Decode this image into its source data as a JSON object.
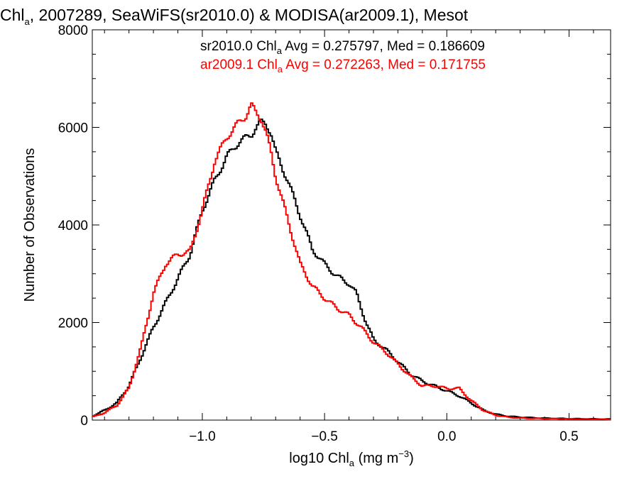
{
  "chart_data": {
    "type": "line",
    "step": true,
    "title": {
      "pre": "Chl",
      "sub": "a",
      "post": ", 2007289, SeaWiFS(sr2010.0) & MODISA(ar2009.1), Mesot"
    },
    "xlabel": {
      "pre": "log10 Chl",
      "sub": "a",
      "mid": " (mg m",
      "sup": "−3",
      "post": ")"
    },
    "ylabel": "Number of Observations",
    "xlim": [
      -1.45,
      0.67
    ],
    "ylim": [
      0,
      8000
    ],
    "x_ticks": [
      -1.0,
      -0.5,
      0.0,
      0.5
    ],
    "x_tick_labels": [
      "−1.0",
      "−0.5",
      "0.0",
      "0.5"
    ],
    "y_ticks": [
      0,
      2000,
      4000,
      6000,
      8000
    ],
    "y_tick_labels": [
      "0",
      "2000",
      "4000",
      "6000",
      "8000"
    ],
    "grid": false,
    "legend_position": "top-right",
    "series": [
      {
        "legend": {
          "pre": "sr2010.0 Chl",
          "sub": "a",
          "post": " Avg = 0.275797, Med = 0.186609"
        },
        "color": "#000000",
        "x": [
          -1.45,
          -1.4,
          -1.35,
          -1.3,
          -1.25,
          -1.2,
          -1.15,
          -1.1,
          -1.05,
          -1.0,
          -0.95,
          -0.9,
          -0.85,
          -0.8,
          -0.78,
          -0.76,
          -0.74,
          -0.72,
          -0.7,
          -0.65,
          -0.6,
          -0.55,
          -0.5,
          -0.45,
          -0.4,
          -0.37,
          -0.33,
          -0.3,
          -0.25,
          -0.2,
          -0.15,
          -0.1,
          -0.05,
          0.0,
          0.05,
          0.1,
          0.15,
          0.2,
          0.25,
          0.3,
          0.4,
          0.5,
          0.6,
          0.67
        ],
        "y": [
          80,
          200,
          350,
          700,
          1300,
          1900,
          2400,
          2900,
          3400,
          4300,
          4900,
          5400,
          5700,
          5850,
          6000,
          6100,
          6080,
          5900,
          5500,
          4900,
          4200,
          3500,
          3200,
          2950,
          2800,
          2600,
          2000,
          1650,
          1450,
          1200,
          950,
          800,
          700,
          600,
          500,
          350,
          200,
          120,
          80,
          60,
          40,
          30,
          25,
          20
        ]
      },
      {
        "legend": {
          "pre": "ar2009.1 Chl",
          "sub": "a",
          "post": " Avg = 0.272263, Med = 0.171755"
        },
        "color": "#ff0000",
        "x": [
          -1.45,
          -1.4,
          -1.35,
          -1.3,
          -1.25,
          -1.2,
          -1.15,
          -1.1,
          -1.05,
          -1.0,
          -0.95,
          -0.9,
          -0.85,
          -0.82,
          -0.8,
          -0.78,
          -0.76,
          -0.74,
          -0.72,
          -0.7,
          -0.65,
          -0.6,
          -0.55,
          -0.5,
          -0.45,
          -0.4,
          -0.35,
          -0.3,
          -0.25,
          -0.2,
          -0.15,
          -0.1,
          -0.05,
          0.0,
          0.05,
          0.1,
          0.15,
          0.2,
          0.25,
          0.3,
          0.4,
          0.5,
          0.6,
          0.67
        ],
        "y": [
          60,
          150,
          300,
          650,
          1500,
          2600,
          3200,
          3400,
          3450,
          4300,
          5300,
          5800,
          6100,
          6250,
          6450,
          6300,
          6200,
          5900,
          5500,
          5000,
          4100,
          3200,
          2750,
          2500,
          2300,
          2150,
          1900,
          1600,
          1400,
          1150,
          900,
          700,
          700,
          650,
          650,
          400,
          200,
          100,
          60,
          40,
          30,
          25,
          20,
          15
        ]
      }
    ]
  }
}
